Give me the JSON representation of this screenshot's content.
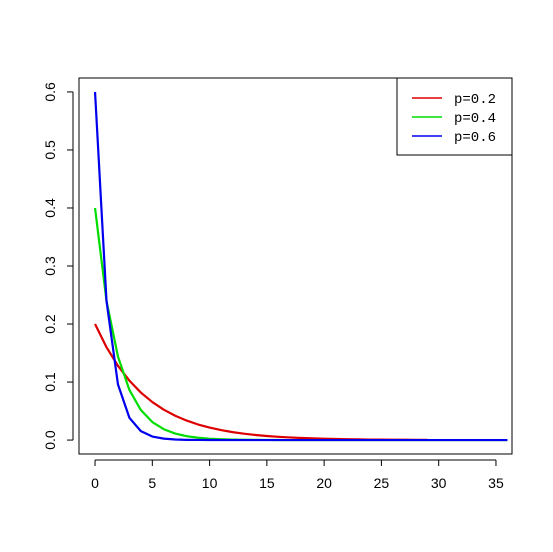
{
  "chart_data": {
    "type": "line",
    "title": "",
    "xlabel": "",
    "ylabel": "",
    "xlim": [
      -1.4,
      36.4
    ],
    "ylim": [
      -0.024,
      0.624
    ],
    "x_ticks": [
      "0",
      "5",
      "10",
      "15",
      "20",
      "25",
      "30",
      "35"
    ],
    "y_ticks": [
      "0.0",
      "0.1",
      "0.2",
      "0.3",
      "0.4",
      "0.5",
      "0.6"
    ],
    "legend_position": "top-right",
    "series": [
      {
        "name": "p=0.2",
        "color": "#dd0000",
        "x": [
          0,
          1,
          2,
          3,
          4,
          5,
          6,
          7,
          8,
          9,
          10,
          11,
          12,
          13,
          14,
          15,
          16,
          17,
          18,
          19,
          20,
          21,
          22,
          23,
          24,
          25,
          26,
          27,
          28,
          29
        ],
        "y": [
          0.2,
          0.16,
          0.128,
          0.1024,
          0.0819,
          0.0655,
          0.0524,
          0.0419,
          0.0336,
          0.0268,
          0.0215,
          0.0172,
          0.0137,
          0.011,
          0.0088,
          0.007,
          0.0056,
          0.0045,
          0.0036,
          0.0029,
          0.0023,
          0.0018,
          0.0015,
          0.0012,
          0.0009,
          0.0008,
          0.0006,
          0.0005,
          0.0004,
          0.0003
        ]
      },
      {
        "name": "p=0.4",
        "color": "#00dd00",
        "x": [
          0,
          1,
          2,
          3,
          4,
          5,
          6,
          7,
          8,
          9,
          10,
          11,
          12,
          13,
          14,
          15,
          16,
          17,
          18,
          19,
          20,
          21,
          22,
          23,
          24,
          25,
          26,
          27,
          28,
          29,
          30,
          31,
          32,
          33,
          34,
          35,
          36
        ],
        "y": [
          0.4,
          0.24,
          0.144,
          0.0864,
          0.0518,
          0.0311,
          0.0187,
          0.0112,
          0.0067,
          0.004,
          0.0024,
          0.0015,
          0.0009,
          0.0005,
          0.0003,
          0.0002,
          0.0001,
          0,
          0,
          0,
          0,
          0,
          0,
          0,
          0,
          0,
          0,
          0,
          0,
          0,
          0,
          0,
          0,
          0,
          0,
          0,
          0
        ]
      },
      {
        "name": "p=0.6",
        "color": "#0000ee",
        "x": [
          0,
          1,
          2,
          3,
          4,
          5,
          6,
          7,
          8,
          9,
          10,
          11,
          12,
          13,
          14,
          15,
          16,
          17,
          18,
          19,
          20,
          21,
          22,
          23,
          24,
          25,
          26,
          27,
          28,
          29,
          30,
          31,
          32,
          33,
          34,
          35,
          36
        ],
        "y": [
          0.6,
          0.24,
          0.096,
          0.0384,
          0.0154,
          0.0061,
          0.0025,
          0.001,
          0.0004,
          0.0002,
          0.0001,
          0,
          0,
          0,
          0,
          0,
          0,
          0,
          0,
          0,
          0,
          0,
          0,
          0,
          0,
          0,
          0,
          0,
          0,
          0,
          0,
          0,
          0,
          0,
          0,
          0,
          0
        ]
      }
    ]
  }
}
